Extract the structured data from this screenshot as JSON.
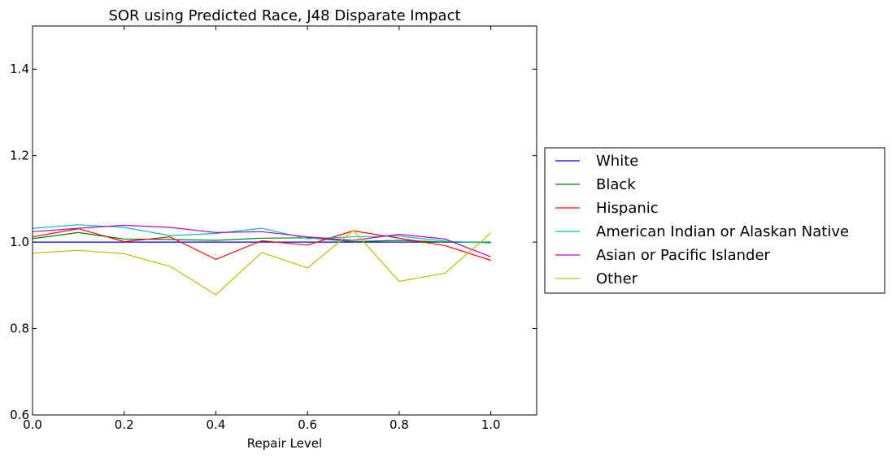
{
  "chart_data": {
    "type": "line",
    "title": "SOR using Predicted Race, J48 Disparate Impact",
    "xlabel": "Repair Level",
    "ylabel": "",
    "xlim": [
      0.0,
      1.1
    ],
    "ylim": [
      0.6,
      1.5
    ],
    "xticks": [
      "0.0",
      "0.2",
      "0.4",
      "0.6",
      "0.8",
      "1.0"
    ],
    "yticks": [
      "0.6",
      "0.8",
      "1.0",
      "1.2",
      "1.4"
    ],
    "x": [
      0.0,
      0.1,
      0.2,
      0.3,
      0.4,
      0.5,
      0.6,
      0.7,
      0.8,
      0.9,
      1.0
    ],
    "grid": false,
    "legend_position": "right-outside",
    "series": [
      {
        "name": "White",
        "color": "#0000ff",
        "values": [
          1.0,
          1.0,
          1.0,
          1.0,
          1.0,
          1.0,
          1.0,
          1.0,
          1.0,
          1.0,
          1.0
        ]
      },
      {
        "name": "Black",
        "color": "#008000",
        "values": [
          1.008,
          1.022,
          1.007,
          1.006,
          1.004,
          1.009,
          1.01,
          1.001,
          1.004,
          1.0,
          1.0
        ]
      },
      {
        "name": "Hispanic",
        "color": "#ff0000",
        "values": [
          1.012,
          1.031,
          1.001,
          1.012,
          0.96,
          1.003,
          0.993,
          1.026,
          1.009,
          0.992,
          0.958
        ]
      },
      {
        "name": "American Indian or Alaskan Native",
        "color": "#00bfbf",
        "values": [
          1.032,
          1.04,
          1.034,
          1.015,
          1.02,
          1.032,
          1.008,
          1.012,
          1.014,
          1.002,
          0.998
        ]
      },
      {
        "name": "Asian or Pacific Islander",
        "color": "#bf00bf",
        "values": [
          1.024,
          1.032,
          1.039,
          1.034,
          1.022,
          1.024,
          1.012,
          1.004,
          1.018,
          1.007,
          0.966
        ]
      },
      {
        "name": "Other",
        "color": "#bfbf00",
        "values": [
          0.974,
          0.981,
          0.973,
          0.944,
          0.878,
          0.976,
          0.94,
          1.027,
          0.909,
          0.928,
          1.021
        ]
      }
    ]
  }
}
